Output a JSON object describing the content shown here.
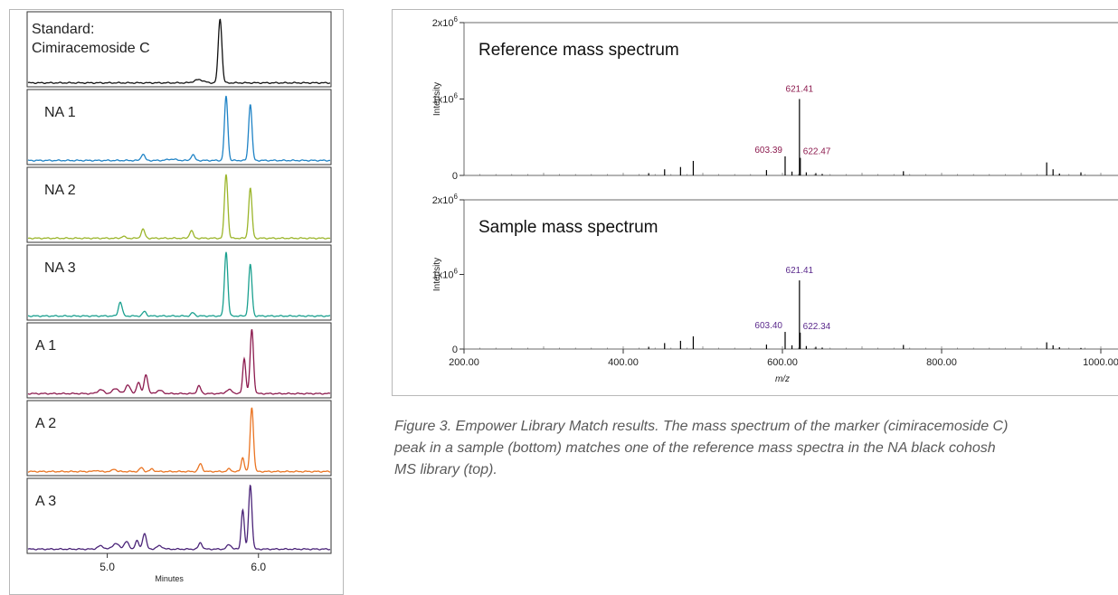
{
  "colors": {
    "standard": "#111111",
    "na1": "#1f83c6",
    "na2": "#9bb52a",
    "na3": "#1aa08f",
    "a1": "#8c1a4e",
    "a2": "#ea7422",
    "a3": "#4a2378",
    "label_ref": "#8c1a4e",
    "label_sample": "#5b2a8c",
    "frame": "#333333",
    "outer_frame": "#b8b8b8"
  },
  "chart_data": [
    {
      "type": "line",
      "title": "",
      "xlabel": "Minutes",
      "ylabel": "",
      "xlim": [
        4.47,
        6.48
      ],
      "x_ticks": [
        "5.0",
        "6.0"
      ],
      "x_tick_values": [
        5.0,
        6.0
      ],
      "series": [
        {
          "name": "Standard:\nCimiracemoside C",
          "color_key": "standard",
          "baseline": 0.02,
          "peaks": [
            [
              5.6,
              0.05,
              0.03
            ],
            [
              5.74,
              1.0,
              0.012
            ]
          ]
        },
        {
          "name": "NA 1",
          "color_key": "na1",
          "baseline": 0.03,
          "peaks": [
            [
              5.23,
              0.1,
              0.012
            ],
            [
              5.56,
              0.09,
              0.012
            ],
            [
              5.78,
              1.0,
              0.011
            ],
            [
              5.94,
              0.88,
              0.011
            ],
            [
              5.42,
              0.02,
              0.03
            ]
          ]
        },
        {
          "name": "NA 2",
          "color_key": "na2",
          "baseline": 0.03,
          "peaks": [
            [
              5.23,
              0.14,
              0.012
            ],
            [
              5.55,
              0.12,
              0.012
            ],
            [
              5.78,
              1.0,
              0.011
            ],
            [
              5.94,
              0.78,
              0.011
            ],
            [
              5.1,
              0.03,
              0.012
            ]
          ]
        },
        {
          "name": "NA 3",
          "color_key": "na3",
          "baseline": 0.03,
          "peaks": [
            [
              5.08,
              0.22,
              0.012
            ],
            [
              5.24,
              0.07,
              0.012
            ],
            [
              5.56,
              0.05,
              0.012
            ],
            [
              5.78,
              1.0,
              0.011
            ],
            [
              5.94,
              0.8,
              0.011
            ]
          ]
        },
        {
          "name": "A 1",
          "color_key": "a1",
          "baseline": 0.04,
          "peaks": [
            [
              4.95,
              0.06,
              0.02
            ],
            [
              5.05,
              0.08,
              0.02
            ],
            [
              5.13,
              0.14,
              0.015
            ],
            [
              5.2,
              0.18,
              0.012
            ],
            [
              5.25,
              0.3,
              0.012
            ],
            [
              5.34,
              0.05,
              0.02
            ],
            [
              5.6,
              0.12,
              0.012
            ],
            [
              5.8,
              0.06,
              0.02
            ],
            [
              5.9,
              0.55,
              0.01
            ],
            [
              5.95,
              1.0,
              0.011
            ]
          ]
        },
        {
          "name": "A 2",
          "color_key": "a2",
          "baseline": 0.03,
          "peaks": [
            [
              4.92,
              0.02,
              0.012
            ],
            [
              5.04,
              0.04,
              0.012
            ],
            [
              5.22,
              0.06,
              0.012
            ],
            [
              5.29,
              0.04,
              0.012
            ],
            [
              5.61,
              0.12,
              0.012
            ],
            [
              5.8,
              0.04,
              0.012
            ],
            [
              5.89,
              0.22,
              0.01
            ],
            [
              5.95,
              1.0,
              0.011
            ]
          ]
        },
        {
          "name": "A 3",
          "color_key": "a3",
          "baseline": 0.04,
          "peaks": [
            [
              4.95,
              0.05,
              0.02
            ],
            [
              5.05,
              0.09,
              0.02
            ],
            [
              5.12,
              0.12,
              0.015
            ],
            [
              5.19,
              0.13,
              0.012
            ],
            [
              5.24,
              0.25,
              0.012
            ],
            [
              5.34,
              0.05,
              0.02
            ],
            [
              5.61,
              0.1,
              0.012
            ],
            [
              5.8,
              0.07,
              0.015
            ],
            [
              5.89,
              0.62,
              0.01
            ],
            [
              5.94,
              1.0,
              0.011
            ]
          ]
        }
      ]
    },
    {
      "type": "bar",
      "title": "Reference mass spectrum",
      "xlabel": "m/z",
      "ylabel": "Intensity",
      "xlim": [
        200,
        1000
      ],
      "ylim": [
        0,
        2000000
      ],
      "x_ticks": [
        "200.00",
        "400.00",
        "600.00",
        "800.00",
        "1000.00"
      ],
      "y_ticks": [
        "0",
        "1x10",
        "2x10"
      ],
      "y_tick_exponent": "6",
      "color_key": "label_ref",
      "peaks": [
        [
          432,
          30000
        ],
        [
          452,
          80000
        ],
        [
          472,
          110000
        ],
        [
          488,
          190000
        ],
        [
          580,
          70000
        ],
        [
          603.39,
          250000
        ],
        [
          612,
          50000
        ],
        [
          621.41,
          1000000
        ],
        [
          622.47,
          230000
        ],
        [
          630,
          40000
        ],
        [
          642,
          30000
        ],
        [
          650,
          20000
        ],
        [
          752,
          55000
        ],
        [
          932,
          170000
        ],
        [
          940,
          80000
        ],
        [
          948,
          25000
        ],
        [
          975,
          40000
        ]
      ],
      "labels": [
        {
          "text": "621.41",
          "x": 621.41,
          "y": 1000000
        },
        {
          "text": "603.39",
          "x": 603.39,
          "y": 250000,
          "side": "left"
        },
        {
          "text": "622.47",
          "x": 622.47,
          "y": 230000,
          "side": "right"
        }
      ]
    },
    {
      "type": "bar",
      "title": "Sample mass spectrum",
      "xlabel": "m/z",
      "ylabel": "Intensity",
      "xlim": [
        200,
        1000
      ],
      "ylim": [
        0,
        2000000
      ],
      "x_ticks": [
        "200.00",
        "400.00",
        "600.00",
        "800.00",
        "1000.00"
      ],
      "y_ticks": [
        "0",
        "1x10",
        "2x10"
      ],
      "y_tick_exponent": "6",
      "color_key": "label_sample",
      "peaks": [
        [
          432,
          30000
        ],
        [
          452,
          80000
        ],
        [
          472,
          110000
        ],
        [
          488,
          170000
        ],
        [
          580,
          60000
        ],
        [
          603.4,
          230000
        ],
        [
          612,
          50000
        ],
        [
          621.41,
          920000
        ],
        [
          622.34,
          220000
        ],
        [
          630,
          40000
        ],
        [
          642,
          30000
        ],
        [
          650,
          20000
        ],
        [
          752,
          55000
        ],
        [
          932,
          90000
        ],
        [
          940,
          50000
        ],
        [
          948,
          25000
        ],
        [
          975,
          15000
        ]
      ],
      "labels": [
        {
          "text": "621.41",
          "x": 621.41,
          "y": 920000
        },
        {
          "text": "603.40",
          "x": 603.4,
          "y": 230000,
          "side": "left"
        },
        {
          "text": "622.34",
          "x": 622.34,
          "y": 220000,
          "side": "right"
        }
      ]
    }
  ],
  "caption": "Figure 3. Empower Library Match results. The mass spectrum of the marker (cimiracemoside C)\npeak in a sample (bottom) matches one of the reference mass spectra in the NA black cohosh\nMS library (top)."
}
